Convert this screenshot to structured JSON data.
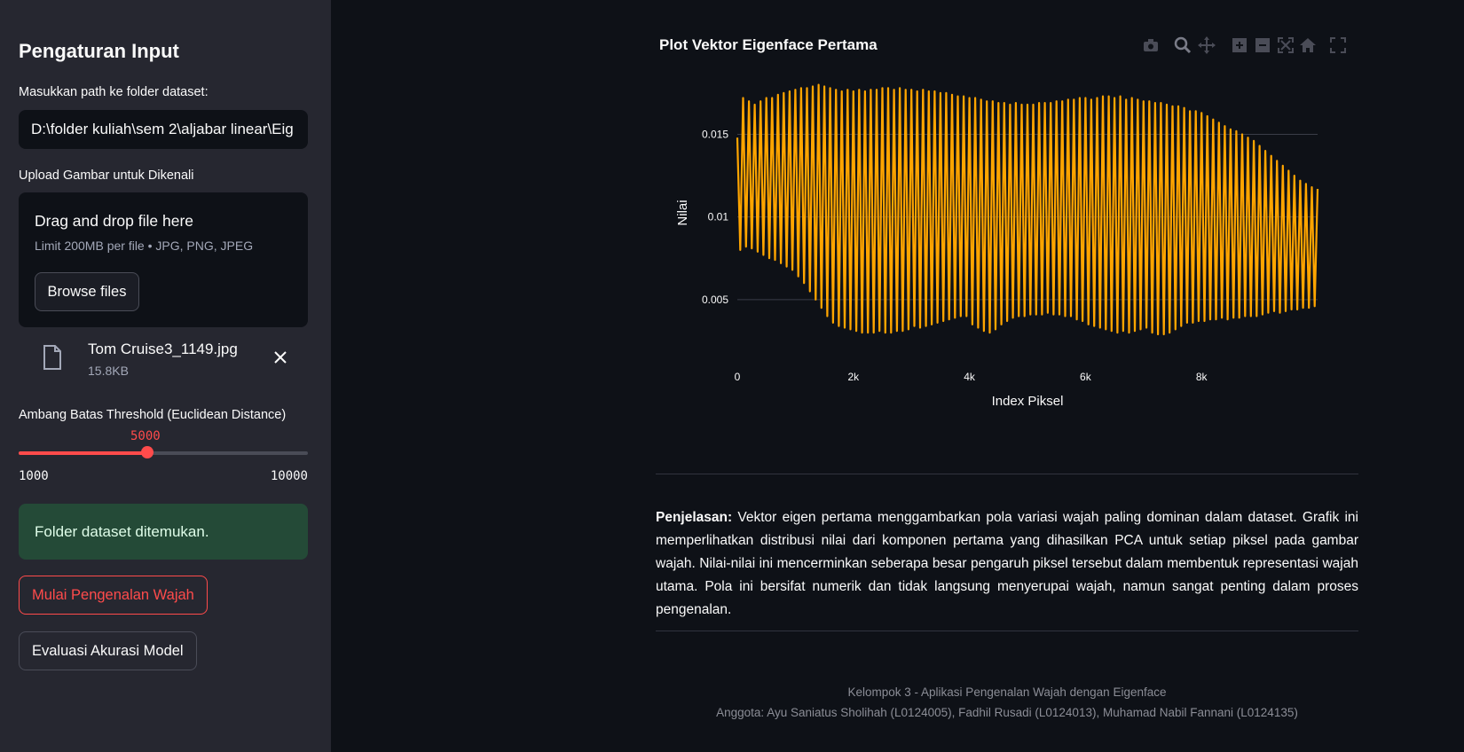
{
  "sidebar": {
    "title": "Pengaturan Input",
    "dataset_label": "Masukkan path ke folder dataset:",
    "dataset_value": "D:\\folder kuliah\\sem 2\\aljabar linear\\Eig",
    "upload_label": "Upload Gambar untuk Dikenali",
    "dropzone_title": "Drag and drop file here",
    "dropzone_sub": "Limit 200MB per file • JPG, PNG, JPEG",
    "browse_label": "Browse files",
    "file_name": "Tom Cruise3_1149.jpg",
    "file_size": "15.8KB",
    "threshold_label": "Ambang Batas Threshold (Euclidean Distance)",
    "threshold_value": "5000",
    "threshold_min": "1000",
    "threshold_max": "10000",
    "threshold_fraction": 0.444,
    "success_text": "Folder dataset ditemukan.",
    "start_button": "Mulai Pengenalan Wajah",
    "eval_button": "Evaluasi Akurasi Model"
  },
  "main": {
    "explain_bold": "Penjelasan:",
    "explain_text": " Vektor eigen pertama menggambarkan pola variasi wajah paling dominan dalam dataset. Grafik ini memperlihatkan distribusi nilai dari komponen pertama yang dihasilkan PCA untuk setiap piksel pada gambar wajah. Nilai-nilai ini mencerminkan seberapa besar pengaruh piksel tersebut dalam membentuk representasi wajah utama. Pola ini bersifat numerik dan tidak langsung menyerupai wajah, namun sangat penting dalam proses pengenalan.",
    "footer_line1": "Kelompok 3 - Aplikasi Pengenalan Wajah dengan Eigenface",
    "footer_line2": "Anggota: Ayu Saniatus Sholihah (L0124005), Fadhil Rusadi (L0124013), Muhamad Nabil Fannani (L0124135)"
  },
  "colors": {
    "accent": "#ff4b4b",
    "line": "#ffa500",
    "success_bg": "#244a37"
  },
  "toolbar_icons": [
    "camera-icon",
    "zoom-icon",
    "pan-icon",
    "zoom-in-icon",
    "zoom-out-icon",
    "autoscale-icon",
    "home-icon",
    "fullscreen-icon"
  ],
  "chart_data": {
    "type": "line",
    "title": "Plot Vektor Eigenface Pertama",
    "xlabel": "Index Piksel",
    "ylabel": "Nilai",
    "xlim": [
      0,
      10000
    ],
    "ylim": [
      0.0022,
      0.0183
    ],
    "x_ticks": [
      "0",
      "2k",
      "4k",
      "6k",
      "8k"
    ],
    "x_tick_values": [
      0,
      2000,
      4000,
      6000,
      8000
    ],
    "y_ticks": [
      "0.005",
      "0.01",
      "0.015"
    ],
    "y_tick_values": [
      0.005,
      0.01,
      0.015
    ],
    "grid": true,
    "series": [
      {
        "color": "#ffa500",
        "x": [
          0,
          100,
          200,
          300,
          400,
          500,
          600,
          700,
          800,
          900,
          1000,
          1100,
          1200,
          1300,
          1400,
          1500,
          1600,
          1700,
          1800,
          1900,
          2000,
          2100,
          2200,
          2300,
          2400,
          2500,
          2600,
          2700,
          2800,
          2900,
          3000,
          3100,
          3200,
          3300,
          3400,
          3500,
          3600,
          3700,
          3800,
          3900,
          4000,
          4100,
          4200,
          4300,
          4400,
          4500,
          4600,
          4700,
          4800,
          4900,
          5000,
          5100,
          5200,
          5300,
          5400,
          5500,
          5600,
          5700,
          5800,
          5900,
          6000,
          6100,
          6200,
          6300,
          6400,
          6500,
          6600,
          6700,
          6800,
          6900,
          7000,
          7100,
          7200,
          7300,
          7400,
          7500,
          7600,
          7700,
          7800,
          7900,
          8000,
          8100,
          8200,
          8300,
          8400,
          8500,
          8600,
          8700,
          8800,
          8900,
          9000,
          9100,
          9200,
          9300,
          9400,
          9500,
          9600,
          9700,
          9800,
          9900,
          10000
        ],
        "highs": [
          0.0148,
          0.0172,
          0.017,
          0.0168,
          0.017,
          0.0172,
          0.0172,
          0.0174,
          0.0175,
          0.0176,
          0.0177,
          0.0178,
          0.0178,
          0.0179,
          0.018,
          0.0179,
          0.0178,
          0.0177,
          0.0176,
          0.0177,
          0.0176,
          0.0177,
          0.0176,
          0.0177,
          0.0177,
          0.0178,
          0.0178,
          0.0177,
          0.0178,
          0.0177,
          0.0177,
          0.0176,
          0.0177,
          0.0176,
          0.0176,
          0.0175,
          0.0175,
          0.0174,
          0.0173,
          0.0173,
          0.0172,
          0.0172,
          0.0171,
          0.017,
          0.017,
          0.0169,
          0.0169,
          0.0168,
          0.0169,
          0.0168,
          0.0168,
          0.0168,
          0.0169,
          0.0169,
          0.0169,
          0.017,
          0.017,
          0.0171,
          0.0171,
          0.0172,
          0.0172,
          0.0171,
          0.0172,
          0.0173,
          0.0173,
          0.0172,
          0.0173,
          0.0171,
          0.0172,
          0.0171,
          0.017,
          0.017,
          0.0169,
          0.0169,
          0.0168,
          0.0167,
          0.0167,
          0.0166,
          0.0164,
          0.0164,
          0.0163,
          0.0161,
          0.0159,
          0.0157,
          0.0155,
          0.0153,
          0.0152,
          0.015,
          0.0148,
          0.0146,
          0.0143,
          0.014,
          0.0137,
          0.0134,
          0.0131,
          0.0128,
          0.0125,
          0.0122,
          0.012,
          0.0118,
          0.0117
        ],
        "lows": [
          0.008,
          0.0082,
          0.0081,
          0.0079,
          0.0077,
          0.0075,
          0.0074,
          0.0072,
          0.007,
          0.0068,
          0.0064,
          0.006,
          0.0055,
          0.005,
          0.0045,
          0.004,
          0.0036,
          0.0034,
          0.0033,
          0.0032,
          0.0031,
          0.003,
          0.003,
          0.003,
          0.0031,
          0.003,
          0.003,
          0.0031,
          0.0031,
          0.0032,
          0.0034,
          0.0033,
          0.0034,
          0.0035,
          0.0036,
          0.0037,
          0.0038,
          0.0039,
          0.004,
          0.004,
          0.0035,
          0.0033,
          0.0031,
          0.003,
          0.0032,
          0.0035,
          0.0037,
          0.0039,
          0.004,
          0.004,
          0.0041,
          0.0041,
          0.0041,
          0.0042,
          0.0041,
          0.0041,
          0.004,
          0.004,
          0.0038,
          0.0037,
          0.0035,
          0.0034,
          0.0033,
          0.0032,
          0.0031,
          0.003,
          0.0031,
          0.003,
          0.0031,
          0.0032,
          0.0033,
          0.003,
          0.0029,
          0.0029,
          0.003,
          0.0032,
          0.0034,
          0.0036,
          0.0036,
          0.0037,
          0.0037,
          0.0038,
          0.0038,
          0.0039,
          0.0038,
          0.0039,
          0.0039,
          0.004,
          0.004,
          0.004,
          0.0041,
          0.0042,
          0.0043,
          0.0042,
          0.0043,
          0.0044,
          0.0044,
          0.0045,
          0.0045,
          0.0046,
          0.005
        ]
      }
    ]
  }
}
